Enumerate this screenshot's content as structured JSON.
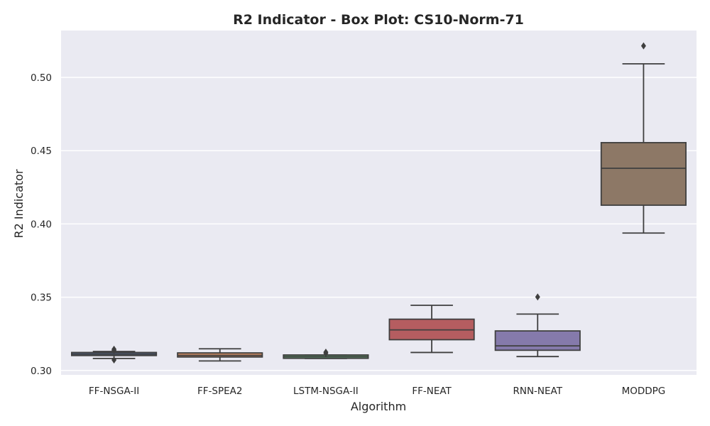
{
  "chart_data": {
    "type": "box",
    "title": "R2 Indicator - Box Plot: CS10-Norm-71",
    "xlabel": "Algorithm",
    "ylabel": "R2 Indicator",
    "ylim": [
      0.297,
      0.532
    ],
    "yticks": [
      "0.30",
      "0.35",
      "0.40",
      "0.45",
      "0.50"
    ],
    "grid": true,
    "categories": [
      "FF-NSGA-II",
      "FF-SPEA2",
      "LSTM-NSGA-II",
      "FF-NEAT",
      "RNN-NEAT",
      "MODDPG"
    ],
    "series": [
      {
        "category": "FF-NSGA-II",
        "color": "#5975a4",
        "whisker_low": 0.3082,
        "q1": 0.3102,
        "median": 0.3112,
        "q3": 0.3123,
        "whisker_high": 0.313,
        "outliers": [
          0.3072,
          0.3145,
          0.3138
        ]
      },
      {
        "category": "FF-SPEA2",
        "color": "#cc8963",
        "whisker_low": 0.3065,
        "q1": 0.3092,
        "median": 0.3103,
        "q3": 0.312,
        "whisker_high": 0.3148,
        "outliers": []
      },
      {
        "category": "LSTM-NSGA-II",
        "color": "#5f9e6e",
        "whisker_low": 0.3082,
        "q1": 0.3083,
        "median": 0.3094,
        "q3": 0.3106,
        "whisker_high": 0.3106,
        "outliers": [
          0.3118,
          0.3125
        ]
      },
      {
        "category": "FF-NEAT",
        "color": "#b55d60",
        "whisker_low": 0.3123,
        "q1": 0.321,
        "median": 0.3277,
        "q3": 0.335,
        "whisker_high": 0.3445,
        "outliers": []
      },
      {
        "category": "RNN-NEAT",
        "color": "#857aab",
        "whisker_low": 0.3095,
        "q1": 0.3138,
        "median": 0.3168,
        "q3": 0.327,
        "whisker_high": 0.3385,
        "outliers": [
          0.3502
        ]
      },
      {
        "category": "MODDPG",
        "color": "#8d7866",
        "whisker_low": 0.3938,
        "q1": 0.4128,
        "median": 0.438,
        "q3": 0.4555,
        "whisker_high": 0.5093,
        "outliers": [
          0.5215
        ]
      }
    ]
  }
}
